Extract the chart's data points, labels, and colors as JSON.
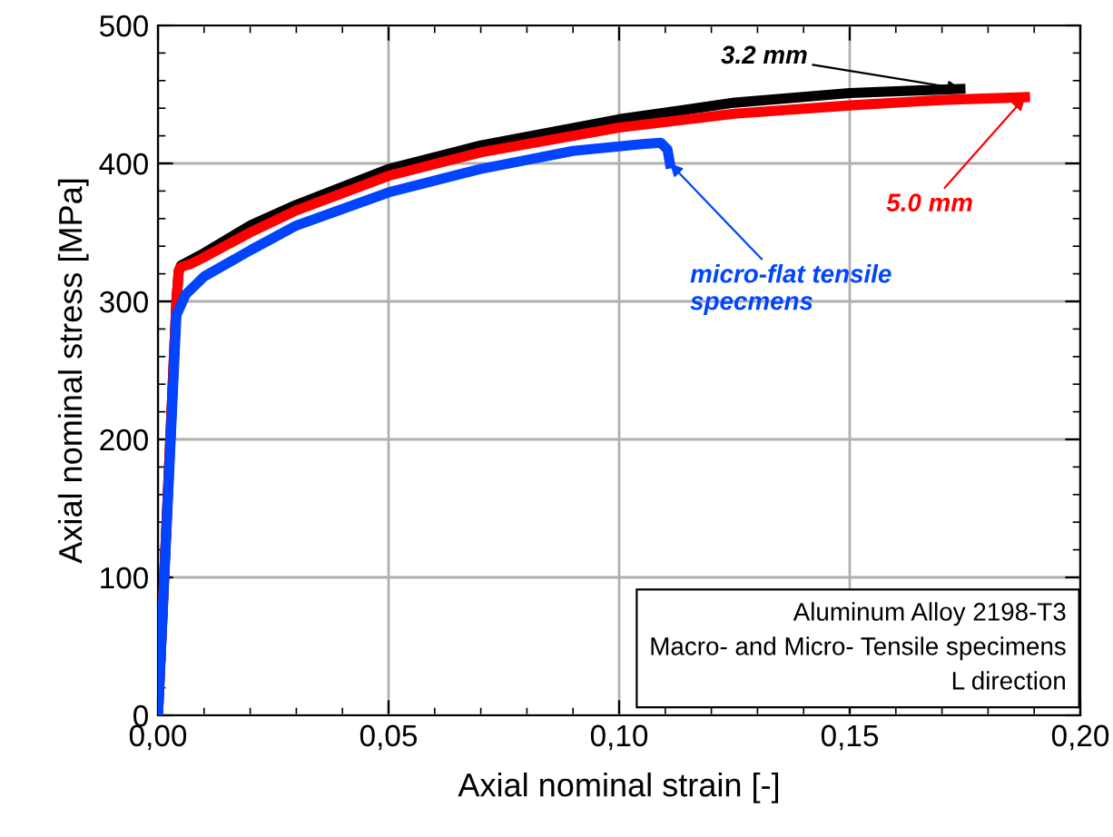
{
  "chart_data": {
    "type": "line",
    "xlabel": "Axial nominal strain [-]",
    "ylabel": "Axial nominal stress [MPa]",
    "xlim": [
      0,
      0.2
    ],
    "ylim": [
      0,
      500
    ],
    "xticks": [
      {
        "value": 0,
        "label": "0,00"
      },
      {
        "value": 0.05,
        "label": "0,05"
      },
      {
        "value": 0.1,
        "label": "0,10"
      },
      {
        "value": 0.15,
        "label": "0,15"
      },
      {
        "value": 0.2,
        "label": "0,20"
      }
    ],
    "yticks": [
      0,
      100,
      200,
      300,
      400,
      500
    ],
    "grid": true,
    "line_style": "solid",
    "marker": "none",
    "series": [
      {
        "name": "3.2 mm",
        "color": "#000000",
        "x": [
          0,
          0.004,
          0.0045,
          0.005,
          0.01,
          0.02,
          0.03,
          0.05,
          0.07,
          0.1,
          0.125,
          0.15,
          0.174
        ],
        "values": [
          0,
          300,
          322,
          326,
          335,
          355,
          370,
          396,
          413,
          432,
          444,
          451,
          454
        ]
      },
      {
        "name": "5.0 mm",
        "color": "#ff0000",
        "x": [
          0,
          0.004,
          0.0045,
          0.005,
          0.007,
          0.01,
          0.02,
          0.03,
          0.05,
          0.07,
          0.1,
          0.125,
          0.15,
          0.17,
          0.188
        ],
        "values": [
          0,
          300,
          322,
          325,
          327,
          332,
          350,
          366,
          391,
          408,
          426,
          436,
          442,
          446,
          448
        ]
      },
      {
        "name": "micro-flat tensile\nspecmens",
        "color": "#0044ff",
        "x": [
          0,
          0.004,
          0.006,
          0.01,
          0.02,
          0.03,
          0.05,
          0.07,
          0.09,
          0.105,
          0.109,
          0.1105,
          0.111
        ],
        "values": [
          0,
          290,
          305,
          318,
          337,
          355,
          379,
          396,
          409,
          414,
          415,
          410,
          400
        ]
      }
    ],
    "annotations": [
      "Aluminum Alloy 2198-T3\nMacro- and Micro- Tensile specimens\nL direction"
    ]
  }
}
